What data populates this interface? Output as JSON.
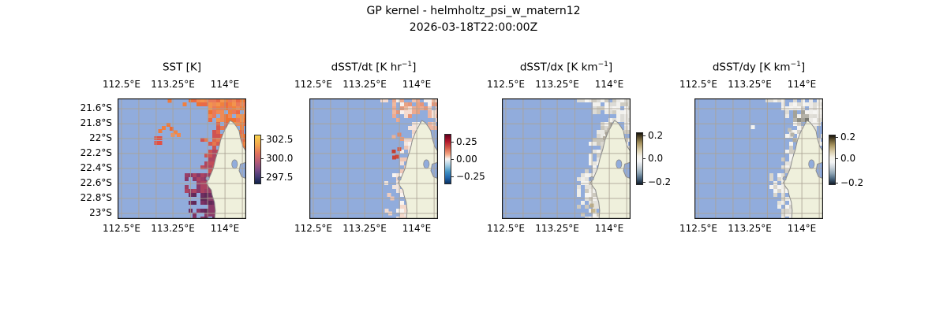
{
  "figure": {
    "title": "GP kernel - helmholtz_psi_w_matern12",
    "subtitle": "2026-03-18T22:00:00Z",
    "background": "#ffffff"
  },
  "chart_data": {
    "type": "heatmap",
    "description": "Four geographic pcolormesh panels over the Western Australian coast: sea-surface temperature and its time/space derivatives. Masked ocean is steel blue, land is cream with gray coastline, tan gridlines at 0.25 deg lon / 0.2 deg lat.",
    "x_ticks": [
      "112.5°E",
      "113.25°E",
      "114°E"
    ],
    "y_ticks": [
      "21.6°S",
      "21.8°S",
      "22°S",
      "22.2°S",
      "22.4°S",
      "22.6°S",
      "22.8°S",
      "23°S"
    ],
    "lon_range_deg_e": [
      112.44,
      114.31
    ],
    "lat_range_deg_s": [
      21.46,
      23.07
    ],
    "grid": "on",
    "map": {
      "ocean": "#91acdc",
      "land": "#eff0dc",
      "coast_stroke": "#8a8a8a",
      "grid_color": "#aaa294",
      "border": "#1a1a1a",
      "grid_vx": [
        0.03,
        0.165,
        0.3,
        0.43,
        0.567,
        0.7,
        0.835,
        0.97
      ],
      "grid_hy": [
        0.085,
        0.21,
        0.333,
        0.457,
        0.58,
        0.706,
        0.83,
        0.954
      ],
      "land_path": [
        [
          0.875,
          0.183
        ],
        [
          0.9,
          0.2
        ],
        [
          0.925,
          0.235
        ],
        [
          0.945,
          0.27
        ],
        [
          0.955,
          0.33
        ],
        [
          0.975,
          0.4
        ],
        [
          1.0,
          0.44
        ],
        [
          1.0,
          0.53
        ],
        [
          0.955,
          0.545
        ],
        [
          0.945,
          0.6
        ],
        [
          0.965,
          0.65
        ],
        [
          1.0,
          0.665
        ],
        [
          1.0,
          1.0
        ],
        [
          0.755,
          1.0
        ],
        [
          0.76,
          0.93
        ],
        [
          0.753,
          0.86
        ],
        [
          0.735,
          0.8
        ],
        [
          0.728,
          0.76
        ],
        [
          0.71,
          0.735
        ],
        [
          0.69,
          0.7
        ],
        [
          0.715,
          0.655
        ],
        [
          0.745,
          0.58
        ],
        [
          0.762,
          0.5
        ],
        [
          0.785,
          0.42
        ],
        [
          0.8,
          0.35
        ],
        [
          0.825,
          0.28
        ],
        [
          0.855,
          0.22
        ]
      ],
      "coast_x": [
        [
          0.183,
          0.875
        ],
        [
          0.22,
          0.855
        ],
        [
          0.28,
          0.825
        ],
        [
          0.35,
          0.8
        ],
        [
          0.42,
          0.785
        ],
        [
          0.5,
          0.762
        ],
        [
          0.58,
          0.745
        ],
        [
          0.655,
          0.715
        ],
        [
          0.7,
          0.69
        ],
        [
          0.735,
          0.71
        ],
        [
          0.76,
          0.728
        ],
        [
          0.8,
          0.735
        ],
        [
          0.86,
          0.753
        ],
        [
          1.0,
          0.757
        ]
      ],
      "lagoons": [
        [
          0.91,
          0.545,
          0.022,
          0.036
        ],
        [
          0.7,
          0.665,
          0.013,
          0.016
        ]
      ]
    },
    "panels": [
      {
        "id": "sst",
        "title_pre": "SST [K",
        "title_sup": "",
        "title_post": "]",
        "colorbar": {
          "ticks": [
            "302.5",
            "300.0",
            "297.5"
          ],
          "tick_values": [
            302.5,
            300.0,
            297.5
          ],
          "colormap": "thermal (yellow-orange-purple-navy)",
          "gradient": [
            "#f7d14b 0%",
            "#f2a44c 20%",
            "#e0705c 38%",
            "#b25a78 56%",
            "#7a4b86 72%",
            "#433b74 86%",
            "#10224a 100%"
          ]
        },
        "field": {
          "top": {
            "steps": [
              [
                0.56,
                0.03
              ],
              [
                0.6,
                0.08
              ],
              [
                0.66,
                0.05
              ],
              [
                0.71,
                0.18
              ],
              [
                0.79,
                0.3
              ]
            ],
            "palette": [
              "#f0813d",
              "#ee7233",
              "#e96a47",
              "#ef8a55",
              "#e97a5a",
              "#f2944e"
            ],
            "density": 0.95
          },
          "strips": [
            {
              "x0": 0.92,
              "y0": 0.0,
              "y1": 0.12,
              "palette": [
                "#a8486a",
                "#ef7a3b",
                "#b85368"
              ],
              "density": 0.85
            },
            {
              "x0": 0.955,
              "y0": 0.12,
              "y1": 0.5,
              "palette": [
                "#ee7a3c",
                "#e4674a",
                "#ef8a45"
              ],
              "density": 0.8
            }
          ],
          "coast": {
            "density": 0.94,
            "zones": [
              [
                0.4,
                0.13,
                [
                  "#e0664c",
                  "#d85b50",
                  "#cf5352",
                  "#e4784f"
                ]
              ],
              [
                0.62,
                0.08,
                [
                  "#c04c5a",
                  "#ae4660",
                  "#cb5454"
                ]
              ],
              [
                0.8,
                0.15,
                [
                  "#9a3e66",
                  "#873868",
                  "#ab4462"
                ]
              ],
              [
                1.01,
                0.16,
                [
                  "#7c3264",
                  "#6e2d60",
                  "#8a3a68",
                  "#612a58"
                ]
              ]
            ]
          },
          "speckles": [
            [
              0.405,
              0.02,
              "#ee7a3c"
            ],
            [
              0.52,
              0.05,
              "#f08040"
            ],
            [
              0.33,
              0.27,
              "#ee7a3c"
            ],
            [
              0.36,
              0.245,
              "#f08040"
            ],
            [
              0.395,
              0.22,
              "#ee7a3c"
            ],
            [
              0.42,
              0.25,
              "#e86a38"
            ],
            [
              0.45,
              0.28,
              "#f08545"
            ],
            [
              0.475,
              0.305,
              "#ef8a50"
            ],
            [
              0.43,
              0.305,
              "#f49055"
            ],
            [
              0.3,
              0.33,
              "#e25044"
            ],
            [
              0.33,
              0.33,
              "#e25044"
            ],
            [
              0.3,
              0.37,
              "#e25044"
            ],
            [
              0.33,
              0.37,
              "#e25044"
            ]
          ]
        }
      },
      {
        "id": "dsst-dt",
        "title_pre": "dSST/dt [K hr",
        "title_sup": "−1",
        "title_post": "]",
        "colorbar": {
          "ticks": [
            "0.25",
            "0.00",
            "−0.25"
          ],
          "tick_values": [
            0.25,
            0.0,
            -0.25
          ],
          "colormap": "RdBu_r",
          "gradient": [
            "#61001f 0%",
            "#b2182b 14%",
            "#d6604d 28%",
            "#f4a582 40%",
            "#f7f5f3 50%",
            "#a9cfe4 62%",
            "#4393c3 76%",
            "#2166ac 88%",
            "#0a3161 100%"
          ]
        },
        "field": {
          "top": {
            "steps": [
              [
                0.56,
                0.04
              ],
              [
                0.63,
                0.17
              ],
              [
                0.8,
                0.12
              ],
              [
                0.9,
                0.07
              ]
            ],
            "palette": [
              "#f2c3ae",
              "#edaa90",
              "#e69579",
              "#f5dcd1",
              "#f8f0ec",
              "#eeb89e",
              "#e8a284"
            ],
            "density": 0.82
          },
          "strips": [
            {
              "x0": 0.93,
              "y0": 0.0,
              "y1": 0.26,
              "palette": [
                "#f6e3da",
                "#f0cabb",
                "#eeb49e"
              ],
              "density": 0.65
            }
          ],
          "coast": {
            "density": 0.8,
            "zones": [
              [
                0.4,
                0.055,
                [
                  "#f8f2ef",
                  "#f4e4dd",
                  "#f0d5c9"
                ]
              ],
              [
                0.62,
                0.05,
                [
                  "#f7f0ec",
                  "#f2e0d8",
                  "#eec6b6"
                ]
              ],
              [
                1.01,
                0.085,
                [
                  "#f8f3f0",
                  "#f3e6df",
                  "#f3d8cb",
                  "#efe4df"
                ]
              ]
            ]
          },
          "speckles": [
            [
              0.655,
              0.44,
              "#c23e30"
            ],
            [
              0.68,
              0.485,
              "#cc4a3a"
            ],
            [
              0.66,
              0.49,
              "#c84436"
            ],
            [
              0.7,
              0.42,
              "#d45a42"
            ],
            [
              0.7,
              0.3,
              "#e08666"
            ],
            [
              0.72,
              0.335,
              "#e59a7e"
            ],
            [
              0.655,
              0.32,
              "#eab196"
            ],
            [
              0.62,
              0.8,
              "#f0cdbd"
            ],
            [
              0.645,
              0.83,
              "#eec4b2"
            ],
            [
              0.6,
              0.93,
              "#f3ddd2"
            ],
            [
              0.63,
              0.955,
              "#f0d2c4"
            ]
          ]
        }
      },
      {
        "id": "dsst-dx",
        "title_pre": "dSST/dx [K km",
        "title_sup": "−1",
        "title_post": "]",
        "colorbar": {
          "ticks": [
            "0.2",
            "0.0",
            "−0.2"
          ],
          "tick_values": [
            0.2,
            0.0,
            -0.2
          ],
          "colormap": "dark-tan / white / slate-dark diverging",
          "gradient": [
            "#16130b 0%",
            "#60522f 9%",
            "#a8945f 20%",
            "#d6c9a4 32%",
            "#f5f2e9 45%",
            "#f4f5f6 55%",
            "#c9d2d9 66%",
            "#8da4b4 78%",
            "#47637c 89%",
            "#101b28 100%"
          ]
        },
        "field": {
          "top": {
            "steps": [
              [
                0.58,
                0.04
              ],
              [
                0.7,
                0.12
              ],
              [
                0.84,
                0.2
              ]
            ],
            "palette": [
              "#f6f5f2",
              "#ebeae6",
              "#dcdbd6",
              "#cfccc2",
              "#f2f1ed"
            ],
            "density": 0.85
          },
          "strips": [
            {
              "x0": 0.9,
              "y0": 0.0,
              "y1": 0.45,
              "palette": [
                "#f2f1ee",
                "#e2dfd8",
                "#d0ccc2"
              ],
              "density": 0.7
            }
          ],
          "coast": {
            "density": 0.9,
            "zones": [
              [
                0.4,
                0.1,
                [
                  "#f5f4f1",
                  "#e9e8e3",
                  "#d9d7d0",
                  "#c8c5bb"
                ]
              ],
              [
                0.62,
                0.07,
                [
                  "#f4f3f0",
                  "#e6e4de",
                  "#d2cfc7"
                ]
              ],
              [
                1.01,
                0.12,
                [
                  "#f5f4f1",
                  "#e4e2db",
                  "#cdc9be",
                  "#efeee9"
                ]
              ]
            ]
          },
          "speckles": [
            [
              0.7,
              0.89,
              "#bfae85"
            ],
            [
              0.71,
              0.93,
              "#c9b88f"
            ],
            [
              0.8,
              0.33,
              "#b3ada0"
            ],
            [
              0.82,
              0.295,
              "#a8a296"
            ],
            [
              0.835,
              0.26,
              "#b8b2a6"
            ],
            [
              0.86,
              0.22,
              "#9a948a"
            ]
          ]
        }
      },
      {
        "id": "dsst-dy",
        "title_pre": "dSST/dy [K km",
        "title_sup": "−1",
        "title_post": "]",
        "colorbar": {
          "ticks": [
            "0.2",
            "0.0",
            "−0.2"
          ],
          "tick_values": [
            0.2,
            0.0,
            -0.2
          ],
          "colormap": "dark-tan / white / slate-dark diverging",
          "gradient": [
            "#16130b 0%",
            "#60522f 9%",
            "#a8945f 20%",
            "#d6c9a4 32%",
            "#f5f2e9 45%",
            "#f4f5f6 55%",
            "#c9d2d9 66%",
            "#8da4b4 78%",
            "#47637c 89%",
            "#101b28 100%"
          ]
        },
        "field": {
          "top": {
            "steps": [
              [
                0.56,
                0.04
              ],
              [
                0.68,
                0.13
              ],
              [
                0.84,
                0.2
              ]
            ],
            "palette": [
              "#f6f5f2",
              "#eceae6",
              "#dddbd5",
              "#f1f0ec"
            ],
            "density": 0.8
          },
          "strips": [
            {
              "x0": 0.9,
              "y0": 0.0,
              "y1": 0.4,
              "palette": [
                "#f2f1ee",
                "#e0ded7"
              ],
              "density": 0.6
            }
          ],
          "dark_cluster": {
            "x0": 0.76,
            "x1": 0.88,
            "y0": 0.1,
            "y1": 0.21,
            "palette": [
              "#8d8d84",
              "#787870",
              "#a3a299",
              "#b5b3aa"
            ],
            "density": 0.8
          },
          "coast": {
            "density": 0.85,
            "zones": [
              [
                0.4,
                0.09,
                [
                  "#f5f4f1",
                  "#e8e6e1",
                  "#d5d2cb"
                ]
              ],
              [
                0.62,
                0.065,
                [
                  "#f4f3f0",
                  "#e4e2dc",
                  "#cfccc4"
                ]
              ],
              [
                1.01,
                0.11,
                [
                  "#f5f4f1",
                  "#e2e0d9",
                  "#d8d5cd",
                  "#efeee9"
                ]
              ]
            ]
          },
          "speckles": [
            [
              0.455,
              0.24,
              "#f4f3f0"
            ],
            [
              0.76,
              0.3,
              "#b6b3a9"
            ],
            [
              0.78,
              0.345,
              "#aeaba1"
            ],
            [
              0.74,
              0.26,
              "#c2bfb5"
            ],
            [
              0.8,
              0.4,
              "#c8c5bc"
            ]
          ]
        }
      }
    ]
  }
}
